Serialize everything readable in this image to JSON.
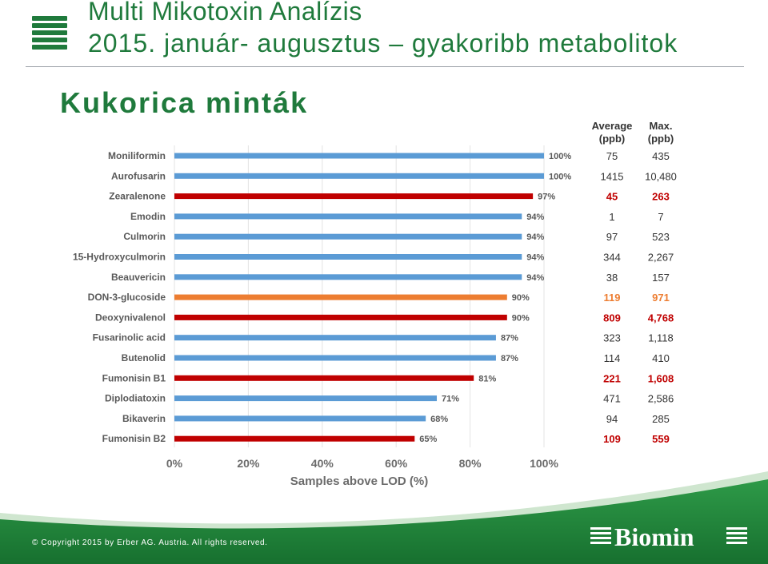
{
  "header": {
    "title": "Multi Mikotoxin Analízis",
    "subtitle": "2015. január- augusztus – gyakoribb metabolitok",
    "section": "Kukorica minták"
  },
  "footer": {
    "copyright": "© Copyright 2015 by Erber AG. Austria. All rights reserved.",
    "brand": "Biomin",
    "brand_mark": "®"
  },
  "colors": {
    "blue": "#5b9bd5",
    "red": "#c00000",
    "orange": "#ed7d31",
    "green": "#1f7a3c"
  },
  "chart_data": {
    "type": "bar",
    "orientation": "horizontal",
    "xlabel": "Samples above LOD (%)",
    "xlim": [
      0,
      100
    ],
    "xticks": [
      "0%",
      "20%",
      "40%",
      "60%",
      "80%",
      "100%"
    ],
    "grid": true,
    "table_headers": {
      "average": [
        "Average",
        "(ppb)"
      ],
      "max": [
        "Max.",
        "(ppb)"
      ]
    },
    "rows": [
      {
        "name": "Moniliformin",
        "pct": 100,
        "label": "100%",
        "avg": "75",
        "max": "435",
        "color": "blue"
      },
      {
        "name": "Aurofusarin",
        "pct": 100,
        "label": "100%",
        "avg": "1415",
        "max": "10,480",
        "color": "blue"
      },
      {
        "name": "Zearalenone",
        "pct": 97,
        "label": "97%",
        "avg": "45",
        "max": "263",
        "color": "red"
      },
      {
        "name": "Emodin",
        "pct": 94,
        "label": "94%",
        "avg": "1",
        "max": "7",
        "color": "blue"
      },
      {
        "name": "Culmorin",
        "pct": 94,
        "label": "94%",
        "avg": "97",
        "max": "523",
        "color": "blue"
      },
      {
        "name": "15-Hydroxyculmorin",
        "pct": 94,
        "label": "94%",
        "avg": "344",
        "max": "2,267",
        "color": "blue"
      },
      {
        "name": "Beauvericin",
        "pct": 94,
        "label": "94%",
        "avg": "38",
        "max": "157",
        "color": "blue"
      },
      {
        "name": "DON-3-glucoside",
        "pct": 90,
        "label": "90%",
        "avg": "119",
        "max": "971",
        "color": "orange"
      },
      {
        "name": "Deoxynivalenol",
        "pct": 90,
        "label": "90%",
        "avg": "809",
        "max": "4,768",
        "color": "red"
      },
      {
        "name": "Fusarinolic acid",
        "pct": 87,
        "label": "87%",
        "avg": "323",
        "max": "1,118",
        "color": "blue"
      },
      {
        "name": "Butenolid",
        "pct": 87,
        "label": "87%",
        "avg": "114",
        "max": "410",
        "color": "blue"
      },
      {
        "name": "Fumonisin B1",
        "pct": 81,
        "label": "81%",
        "avg": "221",
        "max": "1,608",
        "color": "red"
      },
      {
        "name": "Diplodiatoxin",
        "pct": 71,
        "label": "71%",
        "avg": "471",
        "max": "2,586",
        "color": "blue"
      },
      {
        "name": "Bikaverin",
        "pct": 68,
        "label": "68%",
        "avg": "94",
        "max": "285",
        "color": "blue"
      },
      {
        "name": "Fumonisin B2",
        "pct": 65,
        "label": "65%",
        "avg": "109",
        "max": "559",
        "color": "red"
      }
    ]
  }
}
